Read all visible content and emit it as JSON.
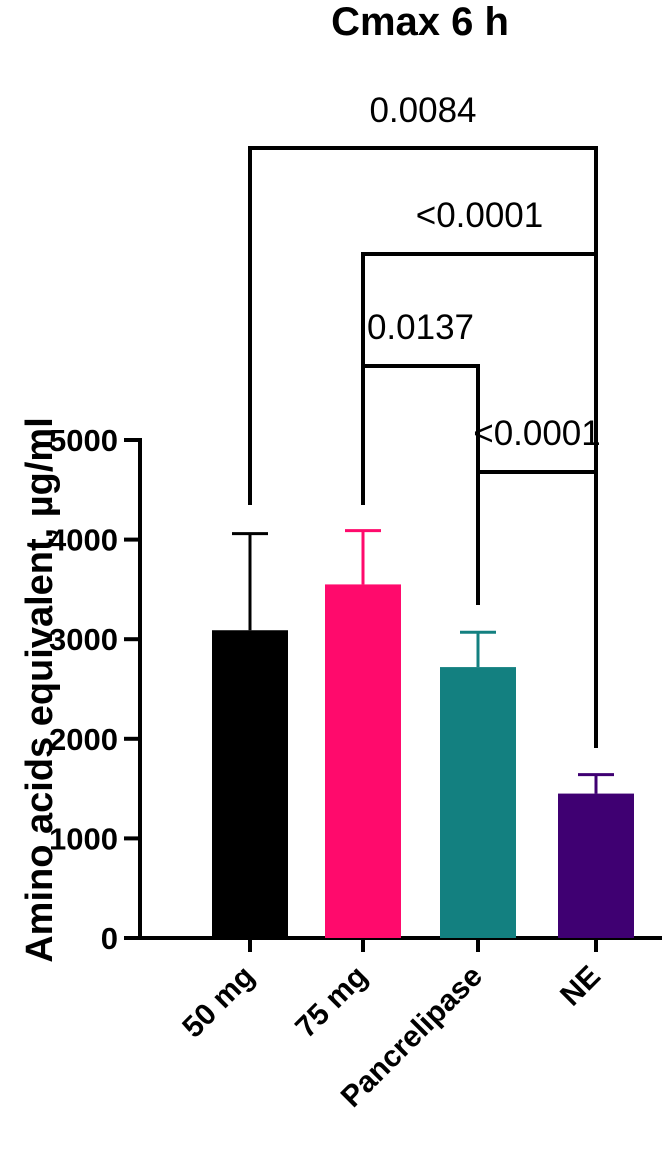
{
  "chart_data": {
    "type": "bar",
    "title": "Cmax 6 h",
    "xlabel": "",
    "ylabel": "Amino acids equivalent, µg/ml",
    "ylim": [
      0,
      5000
    ],
    "yticks": [
      0,
      1000,
      2000,
      3000,
      4000,
      5000
    ],
    "grid": false,
    "categories": [
      "50 mg",
      "75 mg",
      "Pancrelipase",
      "NE"
    ],
    "values": [
      3090,
      3550,
      2720,
      1450
    ],
    "error_upper": [
      4060,
      4090,
      3070,
      1640
    ],
    "colors": [
      "#000000",
      "#ff0a6c",
      "#138080",
      "#3f0072"
    ],
    "comparisons": [
      {
        "from": "50 mg",
        "to": "NE",
        "p": "0.0084"
      },
      {
        "from": "75 mg",
        "to": "NE",
        "p": "<0.0001"
      },
      {
        "from": "75 mg",
        "to": "Pancrelipase",
        "p": "0.0137"
      },
      {
        "from": "Pancrelipase",
        "to": "NE",
        "p": "<0.0001"
      }
    ]
  }
}
